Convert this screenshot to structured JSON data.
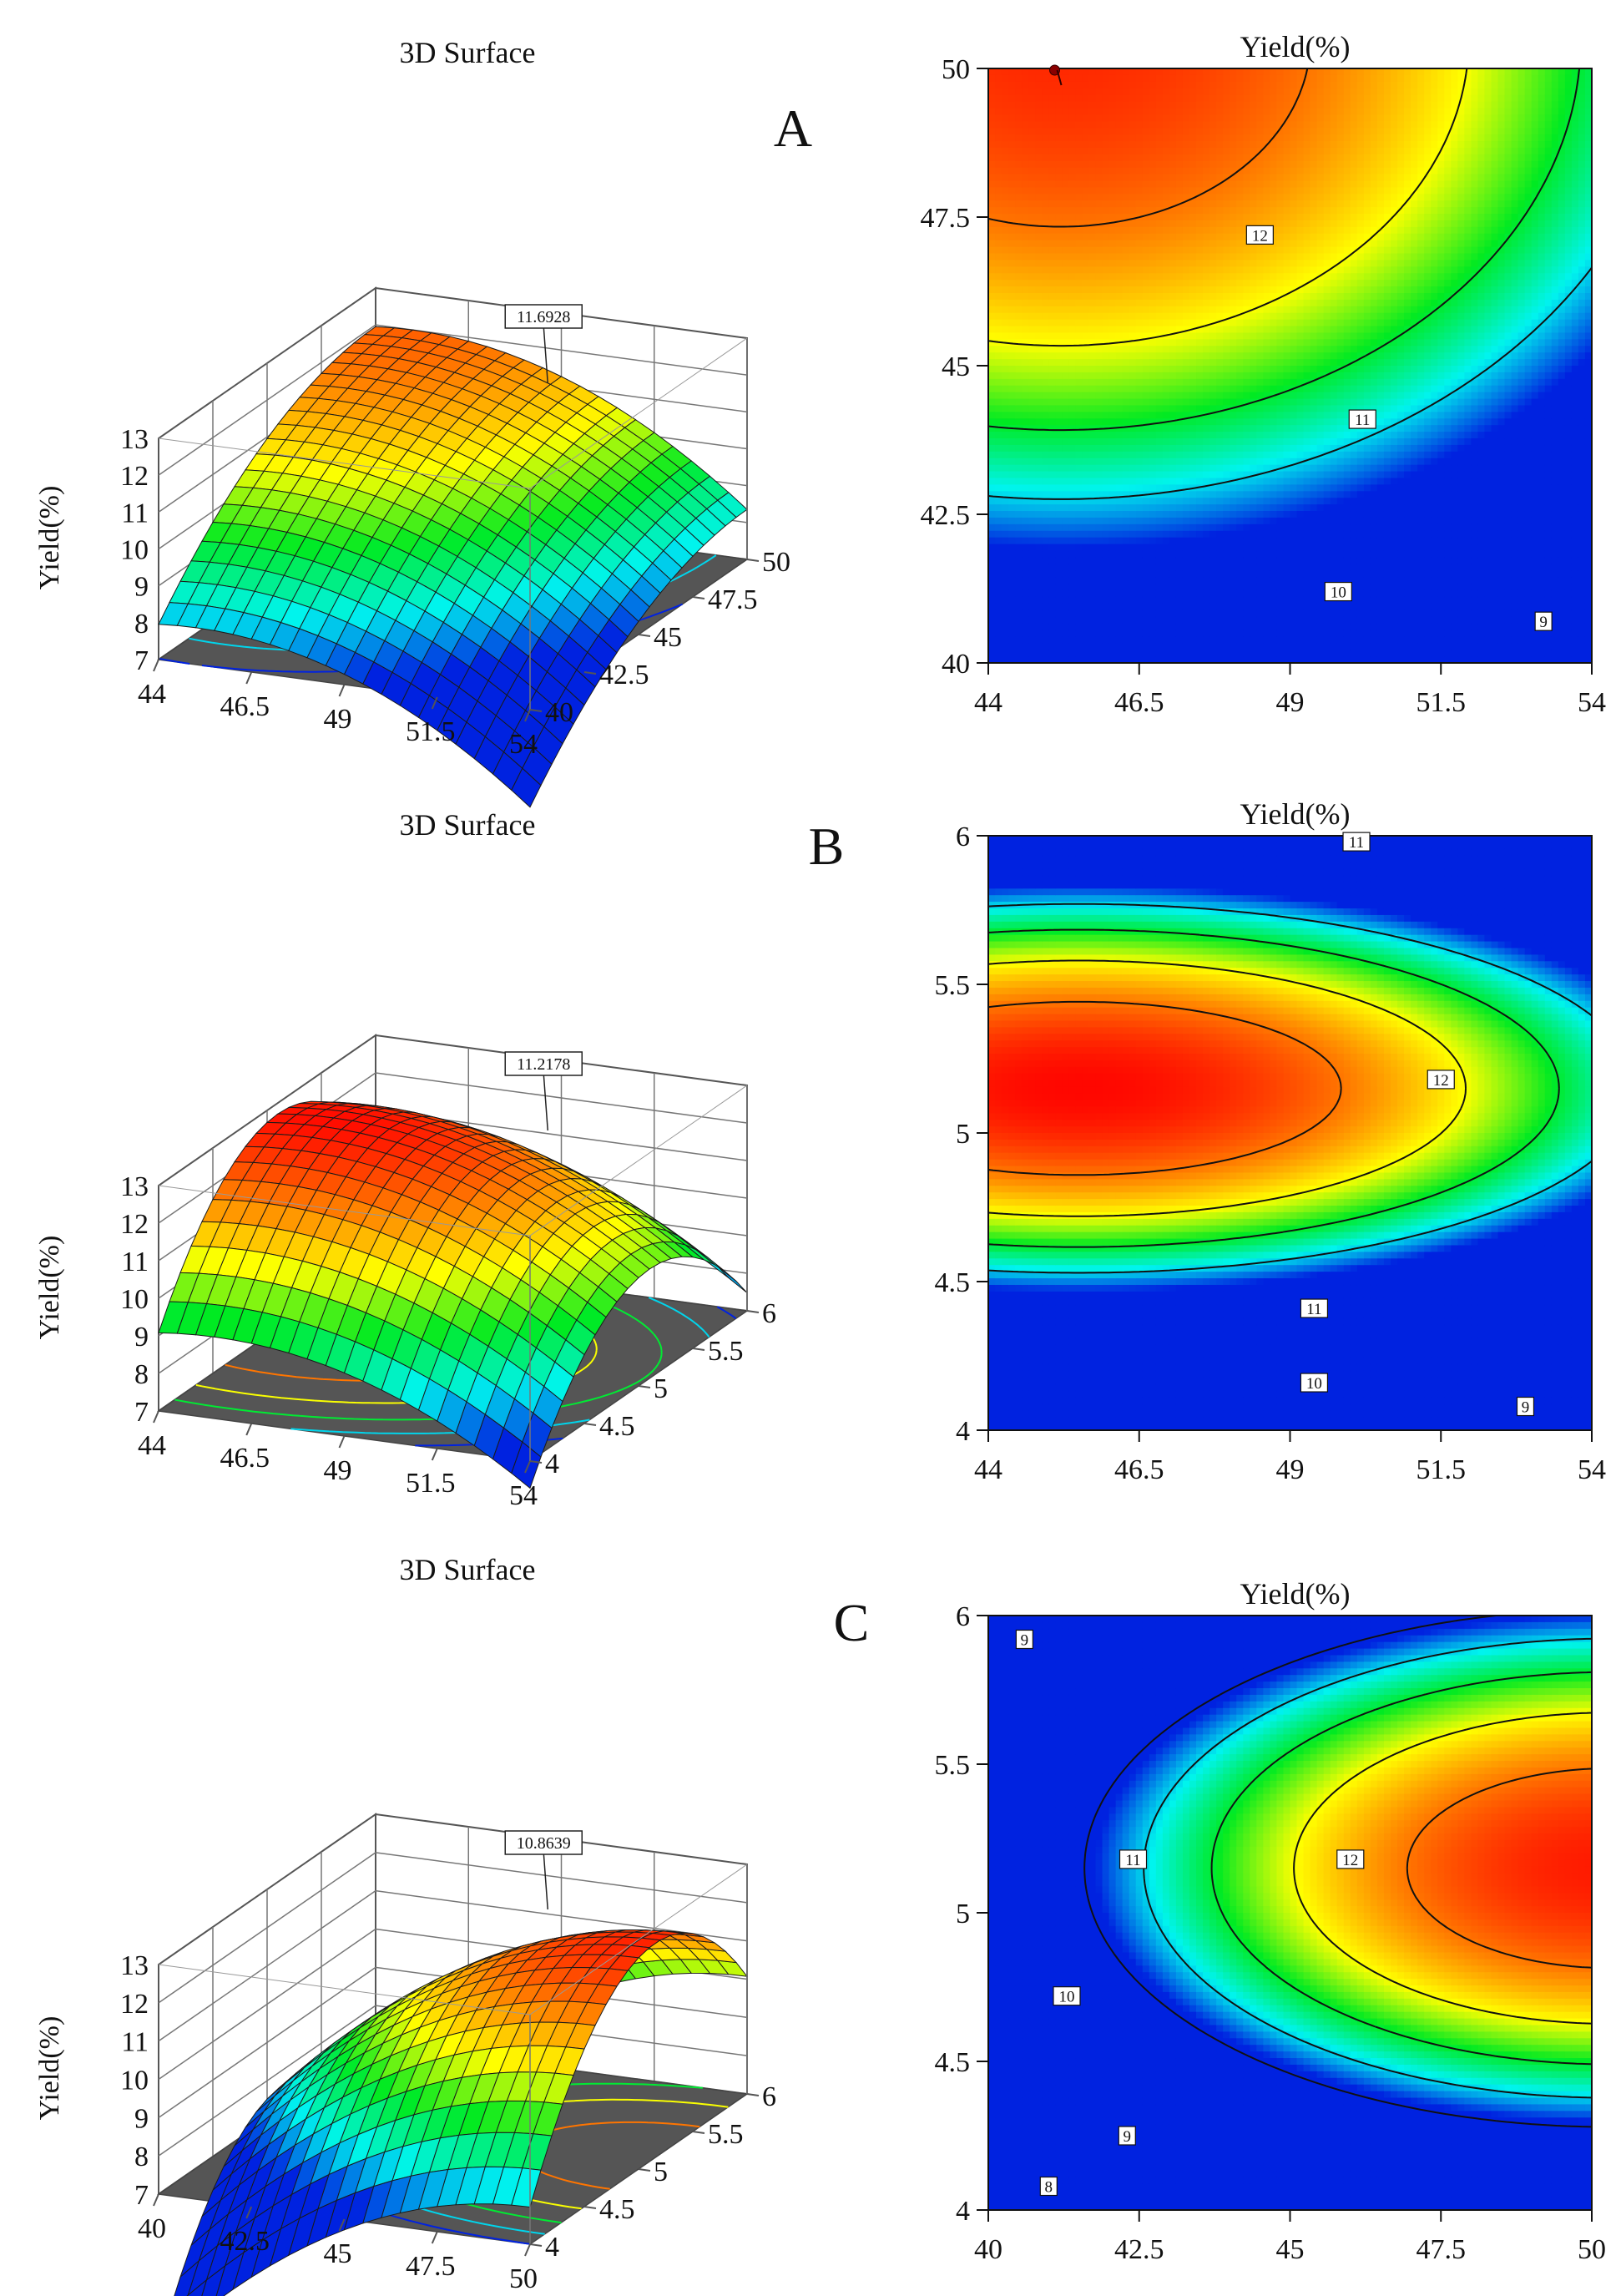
{
  "chart_data": [
    {
      "panel": "A",
      "type": "surface-3d",
      "title": "3D Surface",
      "zlabel": "Yield(%)",
      "zlim": [
        7,
        13
      ],
      "zticks": [
        "7",
        "8",
        "9",
        "10",
        "11",
        "12",
        "13"
      ],
      "x_ticks": [
        "44",
        "46.5",
        "49",
        "51.5",
        "54"
      ],
      "xlim": [
        44,
        54
      ],
      "y_ticks": [
        "40",
        "42.5",
        "45",
        "47.5",
        "50"
      ],
      "ylim": [
        40,
        50
      ],
      "point_label": "11.6928",
      "model": {
        "z0": 12.0,
        "ax": -0.045,
        "cx": 45.0,
        "ay": -0.04,
        "cy": 50.0
      }
    },
    {
      "panel": "A",
      "type": "contour",
      "title": "Yield(%)",
      "x_ticks": [
        "44",
        "46.5",
        "49",
        "51.5",
        "54"
      ],
      "xlim": [
        44,
        54
      ],
      "y_ticks": [
        "40",
        "42.5",
        "45",
        "47.5",
        "50"
      ],
      "ylim": [
        40,
        50
      ],
      "levels": [
        9,
        10,
        11,
        12
      ],
      "level_labels": [
        {
          "level": 12,
          "text": "12",
          "at": [
            48.5,
            47.2
          ]
        },
        {
          "level": 11,
          "text": "11",
          "at": [
            50.2,
            44.1
          ]
        },
        {
          "level": 10,
          "text": "10",
          "at": [
            49.8,
            41.2
          ]
        },
        {
          "level": 9,
          "text": "9",
          "at": [
            53.2,
            40.7
          ]
        }
      ],
      "design_point": [
        45.1,
        50
      ],
      "model": {
        "z0": 12.6,
        "ax": -0.035,
        "cx": 45.2,
        "ay": -0.06,
        "cy": 50.5
      }
    },
    {
      "panel": "B",
      "type": "surface-3d",
      "title": "3D Surface",
      "zlabel": "Yield(%)",
      "zlim": [
        7,
        13
      ],
      "zticks": [
        "7",
        "8",
        "9",
        "10",
        "11",
        "12",
        "13"
      ],
      "x_ticks": [
        "44",
        "46.5",
        "49",
        "51.5",
        "54"
      ],
      "xlim": [
        44,
        54
      ],
      "y_ticks": [
        "4",
        "4.5",
        "5",
        "5.5",
        "6"
      ],
      "ylim": [
        4,
        6
      ],
      "point_label": "11.2178",
      "model": {
        "z0": 12.8,
        "ax": -0.04,
        "cx": 45.5,
        "ay": -3.0,
        "cy": 5.1
      }
    },
    {
      "panel": "B",
      "type": "contour",
      "title": "Yield(%)",
      "x_ticks": [
        "44",
        "46.5",
        "49",
        "51.5",
        "54"
      ],
      "xlim": [
        44,
        54
      ],
      "y_ticks": [
        "4",
        "4.5",
        "5",
        "5.5",
        "6"
      ],
      "ylim": [
        4,
        6
      ],
      "levels": [
        9,
        10,
        11,
        12
      ],
      "level_labels": [
        {
          "level": 11,
          "text": "11",
          "at": [
            50.1,
            5.98
          ]
        },
        {
          "level": 12,
          "text": "12",
          "at": [
            51.5,
            5.18
          ]
        },
        {
          "level": 11,
          "text": "11",
          "at": [
            49.4,
            4.41
          ]
        },
        {
          "level": 10,
          "text": "10",
          "at": [
            49.4,
            4.16
          ]
        },
        {
          "level": 9,
          "text": "9",
          "at": [
            52.9,
            4.08
          ]
        }
      ],
      "model": {
        "z0": 12.85,
        "ax": -0.045,
        "cx": 45.5,
        "ay": -10.0,
        "cy": 5.15
      }
    },
    {
      "panel": "C",
      "type": "surface-3d",
      "title": "3D Surface",
      "zlabel": "Yield(%)",
      "zlim": [
        7,
        13
      ],
      "zticks": [
        "7",
        "8",
        "9",
        "10",
        "11",
        "12",
        "13"
      ],
      "x_ticks": [
        "40",
        "42.5",
        "45",
        "47.5",
        "50"
      ],
      "xlim": [
        40,
        50
      ],
      "y_ticks": [
        "4",
        "4.5",
        "5",
        "5.5",
        "6"
      ],
      "ylim": [
        4,
        6
      ],
      "point_label": "10.8639",
      "model": {
        "z0": 12.6,
        "ax": -0.05,
        "cx": 50.0,
        "ay": -3.5,
        "cy": 5.15
      }
    },
    {
      "panel": "C",
      "type": "contour",
      "title": "Yield(%)",
      "x_ticks": [
        "40",
        "42.5",
        "45",
        "47.5",
        "50"
      ],
      "xlim": [
        40,
        50
      ],
      "y_ticks": [
        "4",
        "4.5",
        "5",
        "5.5",
        "6"
      ],
      "ylim": [
        4,
        6
      ],
      "levels": [
        8,
        9,
        10,
        11,
        12
      ],
      "level_labels": [
        {
          "level": 9,
          "text": "9",
          "at": [
            40.6,
            5.92
          ]
        },
        {
          "level": 11,
          "text": "11",
          "at": [
            42.4,
            5.18
          ]
        },
        {
          "level": 12,
          "text": "12",
          "at": [
            46.0,
            5.18
          ]
        },
        {
          "level": 10,
          "text": "10",
          "at": [
            41.3,
            4.72
          ]
        },
        {
          "level": 9,
          "text": "9",
          "at": [
            42.3,
            4.25
          ]
        },
        {
          "level": 8,
          "text": "8",
          "at": [
            41.0,
            4.08
          ]
        }
      ],
      "model": {
        "z0": 12.7,
        "ax": -0.062,
        "cx": 50.3,
        "ay": -6.2,
        "cy": 5.15
      }
    }
  ],
  "panel_letters": [
    "A",
    "B",
    "C"
  ],
  "colormap": [
    "#0022e0",
    "#00f4ee",
    "#00ea22",
    "#ffff00",
    "#ff7a00",
    "#ff0000"
  ],
  "floor_color": "#555555"
}
